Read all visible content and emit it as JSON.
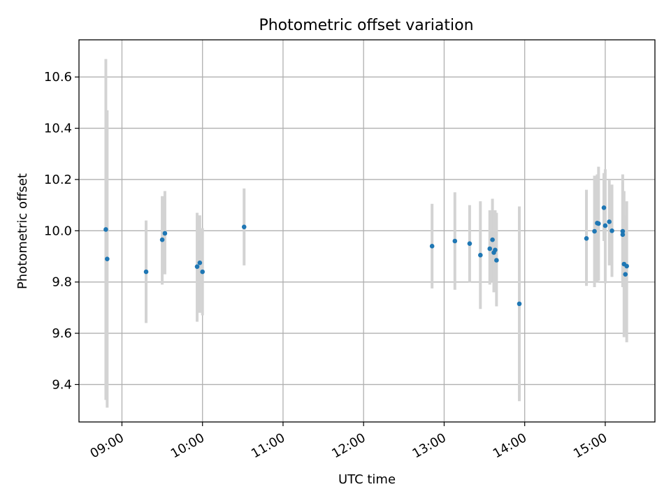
{
  "chart_data": {
    "type": "scatter",
    "title": "Photometric offset variation",
    "xlabel": "UTC time",
    "ylabel": "Photometric offset",
    "x_axis_type": "time",
    "xlim": [
      "08:28",
      "15:37"
    ],
    "ylim": [
      9.254,
      10.745
    ],
    "xticks": [
      "09:00",
      "10:00",
      "11:00",
      "12:00",
      "13:00",
      "14:00",
      "15:00"
    ],
    "yticks": [
      9.4,
      9.6,
      9.8,
      10.0,
      10.2,
      10.4,
      10.6
    ],
    "ytick_labels": [
      "9.4",
      "9.6",
      "9.8",
      "10.0",
      "10.2",
      "10.4",
      "10.6"
    ],
    "grid": true,
    "colors": {
      "points": "#1f77b4",
      "errorbars": "#d3d3d3",
      "grid": "#b0b0b0"
    },
    "points": [
      {
        "x": "08:48",
        "y": 10.005,
        "ylo": 9.34,
        "yhi": 10.67
      },
      {
        "x": "08:49",
        "y": 9.89,
        "ylo": 9.31,
        "yhi": 10.47
      },
      {
        "x": "09:18",
        "y": 9.84,
        "ylo": 9.64,
        "yhi": 10.04
      },
      {
        "x": "09:30",
        "y": 9.965,
        "ylo": 9.79,
        "yhi": 10.135
      },
      {
        "x": "09:32",
        "y": 9.99,
        "ylo": 9.83,
        "yhi": 10.155
      },
      {
        "x": "09:56",
        "y": 9.86,
        "ylo": 9.645,
        "yhi": 10.07
      },
      {
        "x": "09:58",
        "y": 9.875,
        "ylo": 9.68,
        "yhi": 10.06
      },
      {
        "x": "10:00",
        "y": 9.84,
        "ylo": 9.67,
        "yhi": 10.01
      },
      {
        "x": "10:31",
        "y": 10.015,
        "ylo": 9.865,
        "yhi": 10.165
      },
      {
        "x": "12:51",
        "y": 9.94,
        "ylo": 9.775,
        "yhi": 10.105
      },
      {
        "x": "13:08",
        "y": 9.96,
        "ylo": 9.77,
        "yhi": 10.15
      },
      {
        "x": "13:19",
        "y": 9.95,
        "ylo": 9.8,
        "yhi": 10.1
      },
      {
        "x": "13:27",
        "y": 9.905,
        "ylo": 9.695,
        "yhi": 10.115
      },
      {
        "x": "13:34",
        "y": 9.93,
        "ylo": 9.79,
        "yhi": 10.08
      },
      {
        "x": "13:36",
        "y": 9.965,
        "ylo": 9.8,
        "yhi": 10.125
      },
      {
        "x": "13:37",
        "y": 9.915,
        "ylo": 9.76,
        "yhi": 10.08
      },
      {
        "x": "13:38",
        "y": 9.925,
        "ylo": 9.77,
        "yhi": 10.08
      },
      {
        "x": "13:39",
        "y": 9.885,
        "ylo": 9.705,
        "yhi": 10.07
      },
      {
        "x": "13:56",
        "y": 9.715,
        "ylo": 9.335,
        "yhi": 10.095
      },
      {
        "x": "14:46",
        "y": 9.97,
        "ylo": 9.785,
        "yhi": 10.16
      },
      {
        "x": "14:52",
        "y": 9.998,
        "ylo": 9.78,
        "yhi": 10.215
      },
      {
        "x": "14:54",
        "y": 10.03,
        "ylo": 9.8,
        "yhi": 10.22
      },
      {
        "x": "14:55",
        "y": 10.028,
        "ylo": 9.805,
        "yhi": 10.25
      },
      {
        "x": "14:59",
        "y": 10.09,
        "ylo": 9.96,
        "yhi": 10.225
      },
      {
        "x": "15:00",
        "y": 10.02,
        "ylo": 9.795,
        "yhi": 10.24
      },
      {
        "x": "15:03",
        "y": 10.035,
        "ylo": 9.865,
        "yhi": 10.2
      },
      {
        "x": "15:05",
        "y": 10.0,
        "ylo": 9.82,
        "yhi": 10.18
      },
      {
        "x": "15:13",
        "y": 9.998,
        "ylo": 9.78,
        "yhi": 10.22
      },
      {
        "x": "15:13",
        "y": 9.985,
        "ylo": 9.8,
        "yhi": 10.19
      },
      {
        "x": "15:14",
        "y": 9.87,
        "ylo": 9.585,
        "yhi": 10.155
      },
      {
        "x": "15:15",
        "y": 9.83,
        "ylo": 9.6,
        "yhi": 10.06
      },
      {
        "x": "15:16",
        "y": 9.862,
        "ylo": 9.565,
        "yhi": 10.115
      }
    ]
  }
}
